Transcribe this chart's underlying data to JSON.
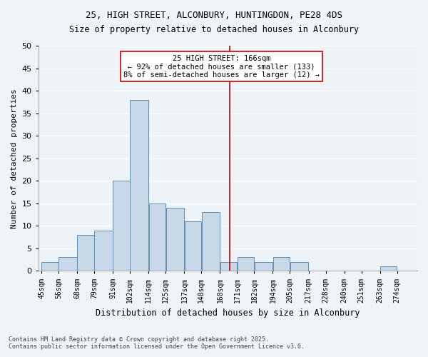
{
  "title_line1": "25, HIGH STREET, ALCONBURY, HUNTINGDON, PE28 4DS",
  "title_line2": "Size of property relative to detached houses in Alconbury",
  "xlabel": "Distribution of detached houses by size in Alconbury",
  "ylabel": "Number of detached properties",
  "bar_color": "#c8d8e8",
  "bar_edgecolor": "#6090b0",
  "background_color": "#eef3f8",
  "grid_color": "#ffffff",
  "annotation_line_color": "#cc0000",
  "annotation_box_color": "#cc0000",
  "annotation_text": "25 HIGH STREET: 166sqm\n← 92% of detached houses are smaller (133)\n8% of semi-detached houses are larger (12) →",
  "property_size": 166,
  "categories": [
    "45sqm",
    "56sqm",
    "68sqm",
    "79sqm",
    "91sqm",
    "102sqm",
    "114sqm",
    "125sqm",
    "137sqm",
    "148sqm",
    "160sqm",
    "171sqm",
    "182sqm",
    "194sqm",
    "205sqm",
    "217sqm",
    "228sqm",
    "240sqm",
    "251sqm",
    "263sqm",
    "274sqm"
  ],
  "bin_edges": [
    45,
    56,
    68,
    79,
    91,
    102,
    114,
    125,
    137,
    148,
    160,
    171,
    182,
    194,
    205,
    217,
    228,
    240,
    251,
    263,
    274,
    285
  ],
  "values": [
    2,
    3,
    8,
    9,
    20,
    38,
    15,
    14,
    11,
    13,
    2,
    3,
    2,
    3,
    2,
    0,
    0,
    0,
    0,
    1,
    0
  ],
  "ylim": [
    0,
    50
  ],
  "yticks": [
    0,
    5,
    10,
    15,
    20,
    25,
    30,
    35,
    40,
    45,
    50
  ],
  "footnote_line1": "Contains HM Land Registry data © Crown copyright and database right 2025.",
  "footnote_line2": "Contains public sector information licensed under the Open Government Licence v3.0."
}
